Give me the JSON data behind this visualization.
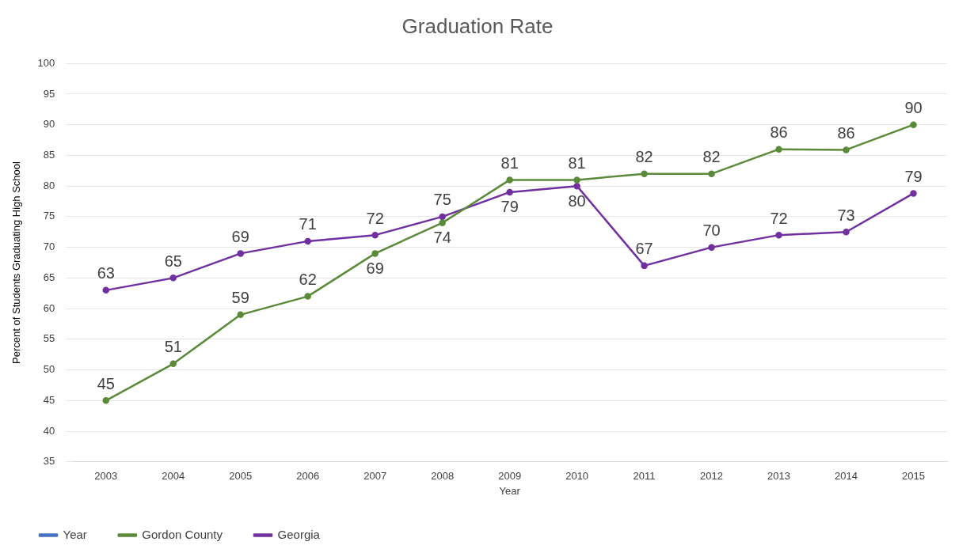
{
  "chart_data": {
    "type": "line",
    "title": "Graduation Rate",
    "xlabel": "Year",
    "ylabel": "Percent of Students Graduating High School",
    "categories": [
      "2003",
      "2004",
      "2005",
      "2006",
      "2007",
      "2008",
      "2009",
      "2010",
      "2011",
      "2012",
      "2013",
      "2014",
      "2015"
    ],
    "series": [
      {
        "name": "Year",
        "color": "#4472c4",
        "values": [
          null,
          null,
          null,
          null,
          null,
          null,
          null,
          null,
          null,
          null,
          null,
          null,
          null
        ]
      },
      {
        "name": "Gordon County",
        "color": "#5b8a3a",
        "values": [
          45,
          51,
          59,
          62,
          69,
          74,
          81,
          81,
          82,
          82,
          86,
          85.9,
          90
        ],
        "value_labels": [
          "45",
          "51",
          "59",
          "62",
          "69",
          "74",
          "81",
          "81",
          "82",
          "82",
          "86",
          "86",
          "90"
        ]
      },
      {
        "name": "Georgia",
        "color": "#7030a0",
        "values": [
          63,
          65,
          69,
          71,
          72,
          75,
          79,
          80,
          67,
          70,
          72,
          72.5,
          78.8
        ],
        "value_labels": [
          "63",
          "65",
          "69",
          "71",
          "72",
          "75",
          "79",
          "80",
          "67",
          "70",
          "72",
          "73",
          "79"
        ]
      }
    ],
    "ylim": [
      35,
      100
    ],
    "yticks": [
      35,
      40,
      45,
      50,
      55,
      60,
      65,
      70,
      75,
      80,
      85,
      90,
      95,
      100
    ],
    "grid": "y",
    "legend": "bottom left",
    "marker": "circle",
    "line_style": "solid"
  }
}
